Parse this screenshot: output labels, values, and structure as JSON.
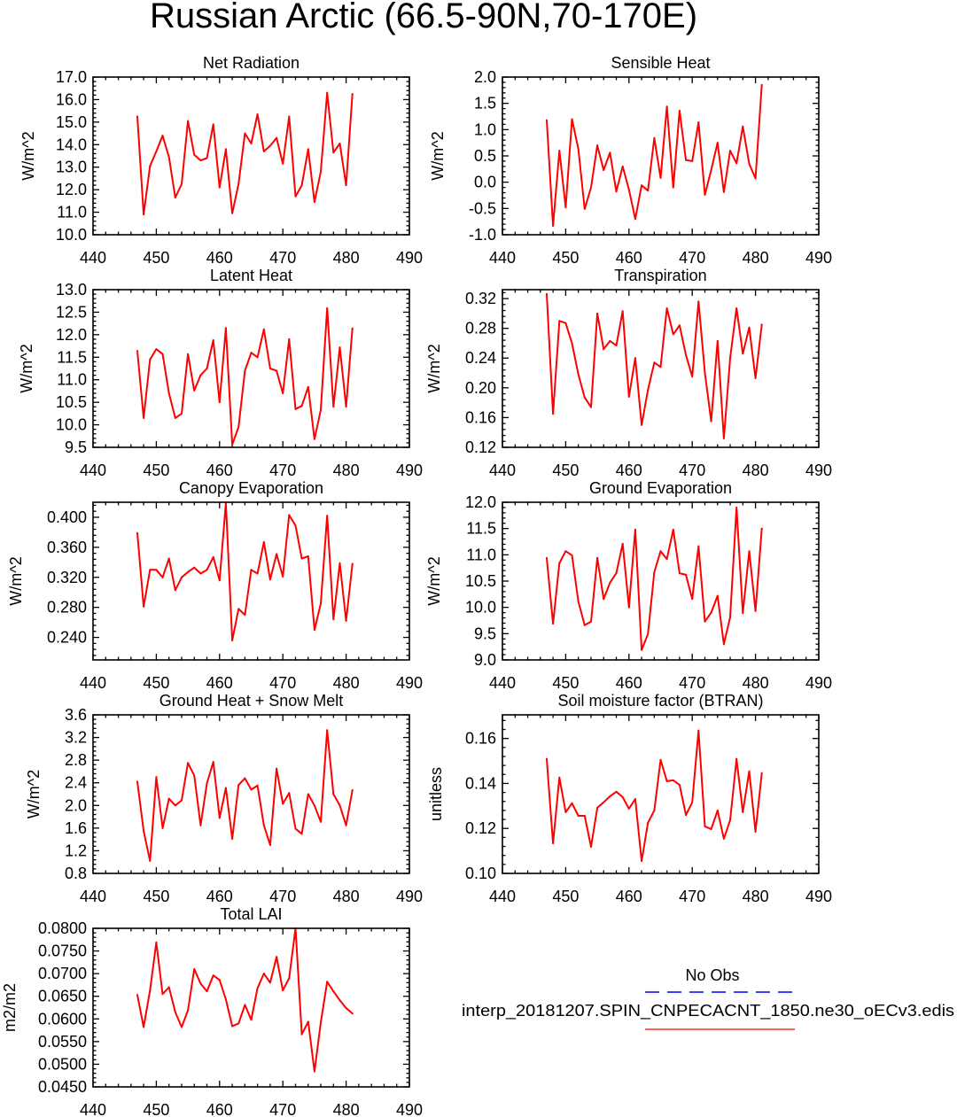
{
  "figure_title": "Russian Arctic (66.5-90N,70-170E)",
  "chart_data": [
    {
      "type": "line",
      "title": "Net Radiation",
      "ylabel": "W/m^2",
      "grid": false,
      "xlim": [
        440,
        490
      ],
      "ylim": [
        10.0,
        17.0
      ],
      "xticks": [
        "440",
        "450",
        "460",
        "470",
        "480",
        "490"
      ],
      "yticks": [
        "10.0",
        "11.0",
        "12.0",
        "13.0",
        "14.0",
        "15.0",
        "16.0",
        "17.0"
      ],
      "x": [
        447,
        448,
        449,
        450,
        451,
        452,
        453,
        454,
        455,
        456,
        457,
        458,
        459,
        460,
        461,
        462,
        463,
        464,
        465,
        466,
        467,
        468,
        469,
        470,
        471,
        472,
        473,
        474,
        475,
        476,
        477,
        478,
        479,
        480,
        481
      ],
      "series": [
        {
          "color": "#ff0000",
          "values": [
            15.25,
            10.9,
            13.05,
            13.7,
            14.4,
            13.45,
            11.65,
            12.25,
            15.05,
            13.55,
            13.3,
            13.4,
            14.9,
            12.1,
            13.8,
            10.95,
            12.25,
            14.5,
            14.05,
            15.35,
            13.7,
            13.95,
            14.3,
            13.15,
            15.25,
            11.7,
            12.2,
            13.8,
            11.45,
            12.8,
            16.3,
            13.65,
            14.05,
            12.2,
            16.25
          ]
        }
      ]
    },
    {
      "type": "line",
      "title": "Sensible Heat",
      "ylabel": "W/m^2",
      "grid": false,
      "xlim": [
        440,
        490
      ],
      "ylim": [
        -1.0,
        2.0
      ],
      "xticks": [
        "440",
        "450",
        "460",
        "470",
        "480",
        "490"
      ],
      "yticks": [
        "-1.0",
        "-0.5",
        "0.0",
        "0.5",
        "1.0",
        "1.5",
        "2.0"
      ],
      "x": [
        447,
        448,
        449,
        450,
        451,
        452,
        453,
        454,
        455,
        456,
        457,
        458,
        459,
        460,
        461,
        462,
        463,
        464,
        465,
        466,
        467,
        468,
        469,
        470,
        471,
        472,
        473,
        474,
        475,
        476,
        477,
        478,
        479,
        480,
        481
      ],
      "series": [
        {
          "color": "#ff0000",
          "values": [
            1.18,
            -0.83,
            0.6,
            -0.48,
            1.2,
            0.63,
            -0.51,
            -0.1,
            0.7,
            0.23,
            0.56,
            -0.18,
            0.3,
            -0.14,
            -0.7,
            -0.06,
            -0.16,
            0.84,
            0.08,
            1.44,
            -0.1,
            1.36,
            0.42,
            0.4,
            1.14,
            -0.24,
            0.23,
            0.75,
            -0.19,
            0.6,
            0.36,
            1.06,
            0.35,
            0.07,
            1.85
          ]
        }
      ]
    },
    {
      "type": "line",
      "title": "Latent Heat",
      "ylabel": "W/m^2",
      "grid": false,
      "xlim": [
        440,
        490
      ],
      "ylim": [
        9.5,
        13.0
      ],
      "xticks": [
        "440",
        "450",
        "460",
        "470",
        "480",
        "490"
      ],
      "yticks": [
        "9.5",
        "10.0",
        "10.5",
        "11.0",
        "11.5",
        "12.0",
        "12.5",
        "13.0"
      ],
      "x": [
        447,
        448,
        449,
        450,
        451,
        452,
        453,
        454,
        455,
        456,
        457,
        458,
        459,
        460,
        461,
        462,
        463,
        464,
        465,
        466,
        467,
        468,
        469,
        470,
        471,
        472,
        473,
        474,
        475,
        476,
        477,
        478,
        479,
        480,
        481
      ],
      "series": [
        {
          "color": "#ff0000",
          "values": [
            11.64,
            10.15,
            11.45,
            11.68,
            11.57,
            10.7,
            10.15,
            10.25,
            11.57,
            10.76,
            11.1,
            11.25,
            11.88,
            10.5,
            12.15,
            9.56,
            9.95,
            11.2,
            11.6,
            11.5,
            12.12,
            11.25,
            11.2,
            10.7,
            11.9,
            10.35,
            10.42,
            10.84,
            9.68,
            10.33,
            12.59,
            10.4,
            11.72,
            10.4,
            12.14
          ]
        }
      ]
    },
    {
      "type": "line",
      "title": "Transpiration",
      "ylabel": "W/m^2",
      "grid": false,
      "xlim": [
        440,
        490
      ],
      "ylim": [
        0.12,
        0.332
      ],
      "xticks": [
        "440",
        "450",
        "460",
        "470",
        "480",
        "490"
      ],
      "yticks": [
        "0.12",
        "0.16",
        "0.20",
        "0.24",
        "0.28",
        "0.32"
      ],
      "x": [
        447,
        448,
        449,
        450,
        451,
        452,
        453,
        454,
        455,
        456,
        457,
        458,
        459,
        460,
        461,
        462,
        463,
        464,
        465,
        466,
        467,
        468,
        469,
        470,
        471,
        472,
        473,
        474,
        475,
        476,
        477,
        478,
        479,
        480,
        481
      ],
      "series": [
        {
          "color": "#ff0000",
          "values": [
            0.326,
            0.165,
            0.29,
            0.287,
            0.26,
            0.218,
            0.187,
            0.174,
            0.3,
            0.252,
            0.263,
            0.257,
            0.303,
            0.188,
            0.24,
            0.15,
            0.197,
            0.234,
            0.228,
            0.307,
            0.272,
            0.284,
            0.244,
            0.215,
            0.316,
            0.22,
            0.155,
            0.263,
            0.132,
            0.24,
            0.307,
            0.246,
            0.281,
            0.213,
            0.285
          ]
        }
      ]
    },
    {
      "type": "line",
      "title": "Canopy Evaporation",
      "ylabel": "W/m^2",
      "grid": false,
      "xlim": [
        440,
        490
      ],
      "ylim": [
        0.21,
        0.42
      ],
      "xticks": [
        "440",
        "450",
        "460",
        "470",
        "480",
        "490"
      ],
      "yticks": [
        "0.240",
        "0.280",
        "0.320",
        "0.360",
        "0.400"
      ],
      "x": [
        447,
        448,
        449,
        450,
        451,
        452,
        453,
        454,
        455,
        456,
        457,
        458,
        459,
        460,
        461,
        462,
        463,
        464,
        465,
        466,
        467,
        468,
        469,
        470,
        471,
        472,
        473,
        474,
        475,
        476,
        477,
        478,
        479,
        480,
        481
      ],
      "series": [
        {
          "color": "#ff0000",
          "values": [
            0.379,
            0.281,
            0.33,
            0.33,
            0.32,
            0.345,
            0.303,
            0.32,
            0.327,
            0.333,
            0.325,
            0.33,
            0.347,
            0.316,
            0.419,
            0.236,
            0.278,
            0.27,
            0.33,
            0.325,
            0.367,
            0.317,
            0.351,
            0.321,
            0.403,
            0.389,
            0.345,
            0.348,
            0.25,
            0.285,
            0.402,
            0.264,
            0.339,
            0.262,
            0.338
          ]
        }
      ]
    },
    {
      "type": "line",
      "title": "Ground Evaporation",
      "ylabel": "W/m^2",
      "grid": false,
      "xlim": [
        440,
        490
      ],
      "ylim": [
        9.0,
        12.0
      ],
      "xticks": [
        "440",
        "450",
        "460",
        "470",
        "480",
        "490"
      ],
      "yticks": [
        "9.0",
        "9.5",
        "10.0",
        "10.5",
        "11.0",
        "11.5",
        "12.0"
      ],
      "x": [
        447,
        448,
        449,
        450,
        451,
        452,
        453,
        454,
        455,
        456,
        457,
        458,
        459,
        460,
        461,
        462,
        463,
        464,
        465,
        466,
        467,
        468,
        469,
        470,
        471,
        472,
        473,
        474,
        475,
        476,
        477,
        478,
        479,
        480,
        481
      ],
      "series": [
        {
          "color": "#ff0000",
          "values": [
            10.94,
            9.69,
            10.84,
            11.07,
            10.99,
            10.11,
            9.66,
            9.73,
            10.94,
            10.16,
            10.47,
            10.65,
            11.21,
            10.0,
            11.48,
            9.19,
            9.49,
            10.67,
            11.07,
            10.92,
            11.48,
            10.65,
            10.62,
            10.16,
            11.16,
            9.73,
            9.9,
            10.22,
            9.3,
            9.81,
            11.9,
            9.89,
            11.07,
            9.93,
            11.5
          ]
        }
      ]
    },
    {
      "type": "line",
      "title": "Ground Heat + Snow Melt",
      "ylabel": "W/m^2",
      "grid": false,
      "xlim": [
        440,
        490
      ],
      "ylim": [
        0.8,
        3.6
      ],
      "xticks": [
        "440",
        "450",
        "460",
        "470",
        "480",
        "490"
      ],
      "yticks": [
        "0.8",
        "1.2",
        "1.6",
        "2.0",
        "2.4",
        "2.8",
        "3.2",
        "3.6"
      ],
      "x": [
        447,
        448,
        449,
        450,
        451,
        452,
        453,
        454,
        455,
        456,
        457,
        458,
        459,
        460,
        461,
        462,
        463,
        464,
        465,
        466,
        467,
        468,
        469,
        470,
        471,
        472,
        473,
        474,
        475,
        476,
        477,
        478,
        479,
        480,
        481
      ],
      "series": [
        {
          "color": "#ff0000",
          "values": [
            2.42,
            1.55,
            1.02,
            2.5,
            1.6,
            2.12,
            2.0,
            2.09,
            2.75,
            2.53,
            1.65,
            2.39,
            2.77,
            1.78,
            2.31,
            1.41,
            2.36,
            2.48,
            2.28,
            2.35,
            1.65,
            1.3,
            2.65,
            2.03,
            2.22,
            1.59,
            1.5,
            2.2,
            2.0,
            1.71,
            3.33,
            2.2,
            2.0,
            1.65,
            2.27
          ]
        }
      ]
    },
    {
      "type": "line",
      "title": "Soil moisture factor (BTRAN)",
      "ylabel": "unitless",
      "grid": false,
      "xlim": [
        440,
        490
      ],
      "ylim": [
        0.1,
        0.1705
      ],
      "xticks": [
        "440",
        "450",
        "460",
        "470",
        "480",
        "490"
      ],
      "yticks": [
        "0.10",
        "0.12",
        "0.14",
        "0.16"
      ],
      "x": [
        447,
        448,
        449,
        450,
        451,
        452,
        453,
        454,
        455,
        456,
        457,
        458,
        459,
        460,
        461,
        462,
        463,
        464,
        465,
        466,
        467,
        468,
        469,
        470,
        471,
        472,
        473,
        474,
        475,
        476,
        477,
        478,
        479,
        480,
        481
      ],
      "series": [
        {
          "color": "#ff0000",
          "values": [
            0.1509,
            0.1134,
            0.1426,
            0.1272,
            0.1312,
            0.1256,
            0.1256,
            0.1118,
            0.1292,
            0.1316,
            0.1343,
            0.1363,
            0.1339,
            0.1288,
            0.1331,
            0.1055,
            0.1225,
            0.128,
            0.1505,
            0.141,
            0.1414,
            0.1394,
            0.126,
            0.1316,
            0.1635,
            0.1209,
            0.1197,
            0.128,
            0.1154,
            0.1237,
            0.1509,
            0.1272,
            0.1454,
            0.1185,
            0.1446
          ]
        }
      ]
    },
    {
      "type": "line",
      "title": "Total LAI",
      "ylabel": "m2/m2",
      "grid": false,
      "xlim": [
        440,
        490
      ],
      "ylim": [
        0.045,
        0.08
      ],
      "xticks": [
        "440",
        "450",
        "460",
        "470",
        "480",
        "490"
      ],
      "yticks": [
        "0.0450",
        "0.0500",
        "0.0550",
        "0.0600",
        "0.0650",
        "0.0700",
        "0.0750",
        "0.0800"
      ],
      "x": [
        447,
        448,
        449,
        450,
        451,
        452,
        453,
        454,
        455,
        456,
        457,
        458,
        459,
        460,
        461,
        462,
        463,
        464,
        465,
        466,
        467,
        468,
        469,
        470,
        471,
        472,
        473,
        474,
        475,
        476,
        477,
        478,
        479,
        480,
        481
      ],
      "series": [
        {
          "color": "#ff0000",
          "values": [
            0.0653,
            0.0582,
            0.0663,
            0.0769,
            0.0655,
            0.067,
            0.0615,
            0.0582,
            0.0619,
            0.071,
            0.0678,
            0.0661,
            0.0696,
            0.0686,
            0.0643,
            0.0584,
            0.059,
            0.0631,
            0.0598,
            0.0668,
            0.07,
            0.068,
            0.0737,
            0.0663,
            0.069,
            0.08,
            0.0566,
            0.0594,
            0.0484,
            0.0592,
            0.0682,
            0.0661,
            0.0641,
            0.0624,
            0.0612
          ]
        }
      ]
    }
  ],
  "legend": [
    {
      "label": "No Obs",
      "color": "#0000ff",
      "line_style": "dashed"
    },
    {
      "label": "interp_20181207.SPIN_CNPECACNT_1850.ne30_oECv3.edis",
      "color": "#ff0000",
      "line_style": "solid"
    }
  ]
}
